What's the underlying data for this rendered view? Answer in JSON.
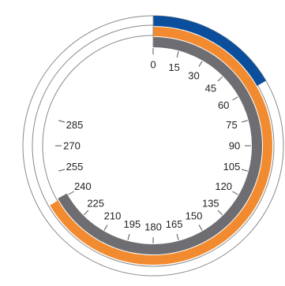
{
  "chart_data": {
    "type": "radial-arc",
    "angle_range": [
      0,
      360
    ],
    "tick_labels": [
      "0",
      "15",
      "30",
      "45",
      "60",
      "75",
      "90",
      "105",
      "120",
      "135",
      "150",
      "165",
      "180",
      "195",
      "210",
      "225",
      "240",
      "255",
      "270",
      "285"
    ],
    "series": [
      {
        "start": 0,
        "end": 360,
        "color": "#ffffff",
        "outline": "#666666"
      },
      {
        "start": 0,
        "end": 60,
        "color": "#0b4f9c"
      },
      {
        "start": 0,
        "end": 360,
        "color": "#ffffff",
        "outline": "#666666"
      },
      {
        "start": 0,
        "end": 240,
        "color": "#f28a30"
      },
      {
        "start": 0,
        "end": 360,
        "color": "#ffffff",
        "outline": "#666666"
      },
      {
        "start": 0,
        "end": 241,
        "color": "#6e6e72"
      }
    ],
    "grid": false
  }
}
